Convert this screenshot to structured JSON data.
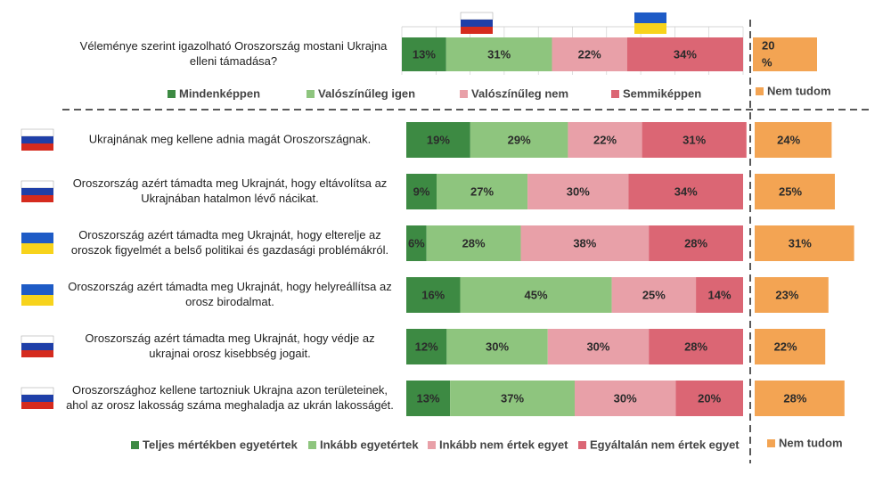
{
  "colors": {
    "strong_yes": "#3d8a43",
    "yes": "#8ec57e",
    "no": "#e8a0a8",
    "strong_no": "#db6674",
    "dontknow": "#f3a453",
    "label_dark": "#2b2b2b",
    "label_light": "#2b2b2b",
    "grid": "#c8c8c8",
    "divider": "#222222"
  },
  "chart_data": [
    {
      "type": "bar",
      "orientation": "horizontal",
      "stacked": true,
      "categories": [
        "Véleménye szerint igazolható Oroszország mostani Ukrajna elleni támadása?"
      ],
      "category_lines": [
        [
          "Véleménye szerint igazolható Oroszország mostani Ukrajna",
          "elleni támadása?"
        ]
      ],
      "category_flags": [
        "none"
      ],
      "header_flags": [
        "russia-flag",
        "ukraine-flag"
      ],
      "series": [
        {
          "name": "Mindenképpen",
          "values": [
            13
          ]
        },
        {
          "name": "Valószínűleg igen",
          "values": [
            31
          ]
        },
        {
          "name": "Valószínűleg nem",
          "values": [
            22
          ]
        },
        {
          "name": "Semmiképpen",
          "values": [
            34
          ]
        }
      ],
      "dont_know": {
        "name": "Nem tudom",
        "values": [
          20
        ]
      },
      "labels": [
        "13%",
        "31%",
        "22%",
        "34%"
      ],
      "dont_know_labels": [
        "20\n%"
      ],
      "xlim": [
        0,
        100
      ],
      "legend": "bottom"
    },
    {
      "type": "bar",
      "orientation": "horizontal",
      "stacked": true,
      "categories": [
        "Ukrajnának meg kellene adnia magát Oroszországnak.",
        "Oroszország azért támadta meg Ukrajnát, hogy eltávolítsa az Ukrajnában hatalmon lévő nácikat.",
        "Oroszország azért támadta meg Ukrajnát, hogy elterelje az oroszok figyelmét a belső politikai és gazdasági problémákról.",
        "Oroszország azért támadta meg Ukrajnát, hogy helyreállítsa az orosz birodalmat.",
        "Oroszország azért támadta meg Ukrajnát, hogy védje az ukrajnai orosz kisebbség jogait.",
        "Oroszországhoz kellene tartozniuk Ukrajna azon területeinek, ahol az orosz lakosság száma meghaladja az ukrán lakosságét."
      ],
      "category_lines": [
        [
          "Ukrajnának meg kellene adnia magát Oroszországnak."
        ],
        [
          "Oroszország azért támadta meg Ukrajnát, hogy eltávolítsa az",
          "Ukrajnában hatalmon lévő nácikat."
        ],
        [
          "Oroszország azért támadta meg Ukrajnát, hogy elterelje az",
          "oroszok figyelmét a belső politikai és gazdasági problémákról."
        ],
        [
          "Oroszország azért támadta meg Ukrajnát, hogy helyreállítsa az",
          "orosz birodalmat."
        ],
        [
          "Oroszország azért támadta meg Ukrajnát, hogy védje az",
          "ukrajnai orosz kisebbség jogait."
        ],
        [
          "Oroszországhoz kellene tartozniuk Ukrajna azon területeinek,",
          "ahol az orosz lakosság száma meghaladja az ukrán lakosságét."
        ]
      ],
      "category_flags": [
        "russia-flag",
        "russia-flag",
        "ukraine-flag",
        "ukraine-flag",
        "russia-flag",
        "russia-flag"
      ],
      "series": [
        {
          "name": "Teljes mértékben egyetértek",
          "values": [
            19,
            9,
            6,
            16,
            12,
            13
          ]
        },
        {
          "name": "Inkább egyetértek",
          "values": [
            29,
            27,
            28,
            45,
            30,
            37
          ]
        },
        {
          "name": "Inkább nem értek egyet",
          "values": [
            22,
            30,
            38,
            25,
            30,
            30
          ]
        },
        {
          "name": "Egyáltalán nem értek egyet",
          "values": [
            31,
            34,
            28,
            14,
            28,
            20
          ]
        }
      ],
      "dont_know": {
        "name": "Nem tudom",
        "values": [
          24,
          25,
          31,
          23,
          22,
          28
        ]
      },
      "xlim": [
        0,
        100
      ],
      "legend": "bottom"
    }
  ]
}
